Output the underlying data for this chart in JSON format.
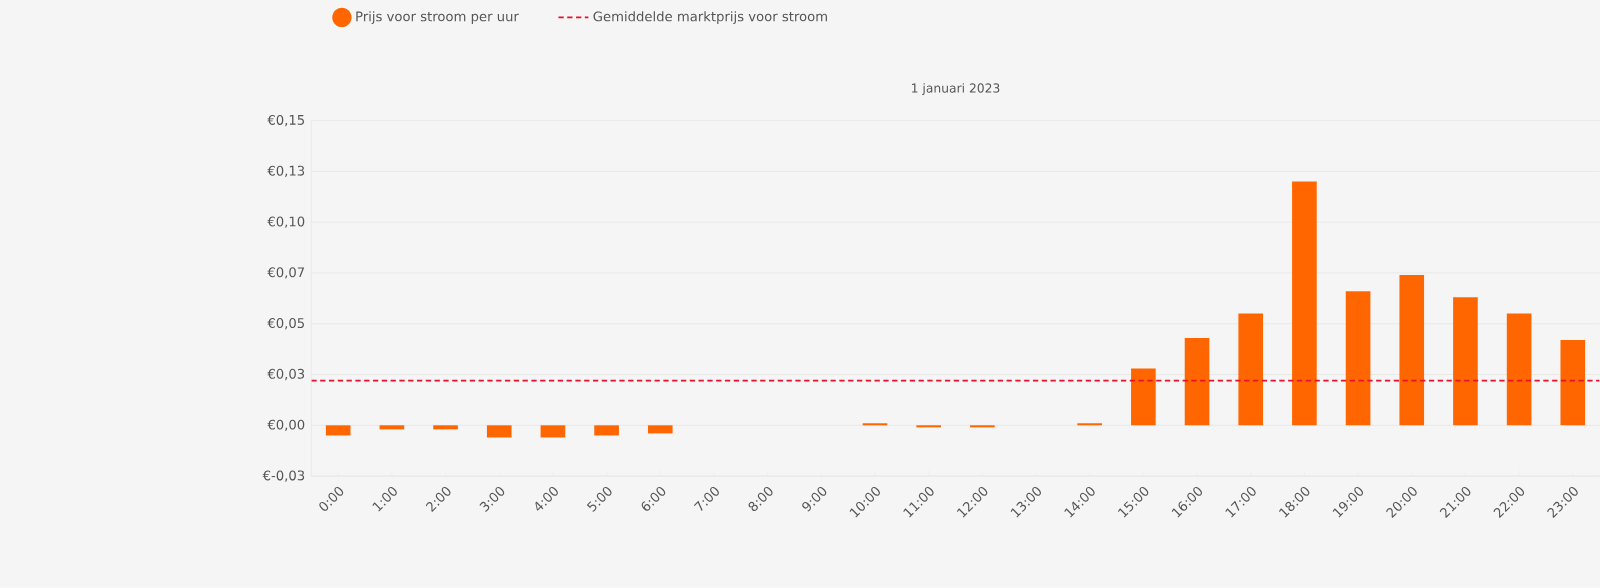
{
  "chart_data": {
    "type": "bar",
    "title": "1 januari 2023",
    "categories": [
      "0:00",
      "1:00",
      "2:00",
      "3:00",
      "4:00",
      "5:00",
      "6:00",
      "7:00",
      "8:00",
      "9:00",
      "10:00",
      "11:00",
      "12:00",
      "13:00",
      "14:00",
      "15:00",
      "16:00",
      "17:00",
      "18:00",
      "19:00",
      "20:00",
      "21:00",
      "22:00",
      "23:00"
    ],
    "series": [
      {
        "name": "Prijs voor stroom per uur",
        "color": "#ff6600",
        "values": [
          -0.005,
          -0.002,
          -0.002,
          -0.006,
          -0.006,
          -0.005,
          -0.004,
          0,
          0,
          0,
          0.001,
          -0.001,
          -0.001,
          0,
          0.001,
          0.028,
          0.043,
          0.055,
          0.12,
          0.066,
          0.074,
          0.063,
          0.055,
          0.042
        ]
      }
    ],
    "ref_lines": [
      {
        "axis": "y",
        "value": 0.022,
        "label": "Gemiddelde marktprijs voor stroom",
        "color": "#e8112d",
        "line_style": "dashed"
      }
    ],
    "ylim": [
      -0.025,
      0.15
    ],
    "yticks": [
      {
        "value": -0.025,
        "label": "€-0,03"
      },
      {
        "value": 0,
        "label": "€0,00"
      },
      {
        "value": 0.025,
        "label": "€0,03"
      },
      {
        "value": 0.05,
        "label": "€0,05"
      },
      {
        "value": 0.075,
        "label": "€0,07"
      },
      {
        "value": 0.1,
        "label": "€0,10"
      },
      {
        "value": 0.125,
        "label": "€0,13"
      },
      {
        "value": 0.15,
        "label": "€0,15"
      }
    ],
    "grid": "y",
    "legend": "top"
  }
}
